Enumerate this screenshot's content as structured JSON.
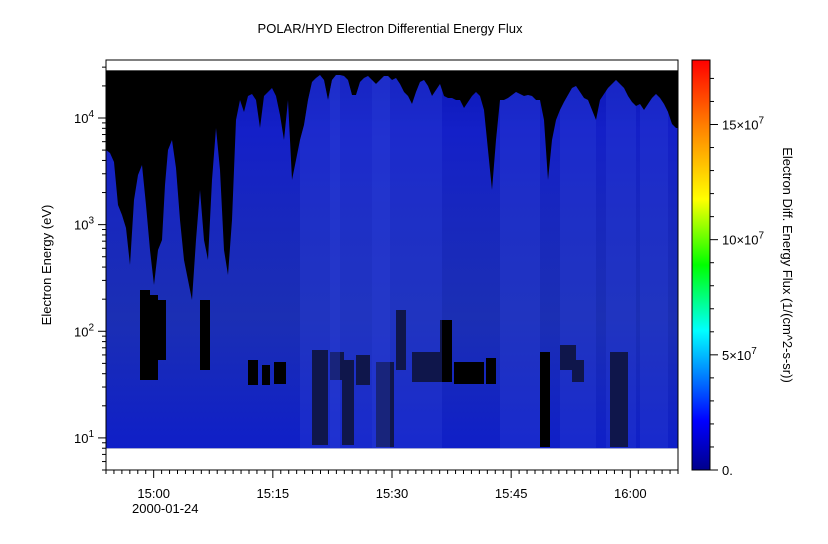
{
  "chart_data": {
    "type": "heatmap",
    "title": "POLAR/HYD  Electron Differential Energy Flux",
    "xlabel": "",
    "ylabel": "Electron Energy (eV)",
    "x_tick_labels": [
      "15:00",
      "15:15",
      "15:30",
      "15:45",
      "16:00"
    ],
    "x_tick_minutes": [
      0,
      15,
      30,
      45,
      60
    ],
    "x_date_label": "2000-01-24",
    "xlim_minutes": [
      -6,
      66
    ],
    "y_scale": "log",
    "ylim": [
      5,
      35000
    ],
    "y_tick_labels": [
      {
        "base": "10",
        "exp": "1",
        "value": 10
      },
      {
        "base": "10",
        "exp": "2",
        "value": 100
      },
      {
        "base": "10",
        "exp": "3",
        "value": 1000
      },
      {
        "base": "10",
        "exp": "4",
        "value": 10000
      }
    ],
    "data_energy_range_eV": [
      8,
      28000
    ],
    "colorbar": {
      "label": "Electron Diff. Energy Flux (1/(cm^2-s-sr))",
      "range": [
        0,
        178000000
      ],
      "ticks": [
        {
          "value": 0,
          "label": "0.",
          "exp": ""
        },
        {
          "value": 50000000,
          "label": "5×10",
          "exp": "7"
        },
        {
          "value": 100000000,
          "label": "10×10",
          "exp": "7"
        },
        {
          "value": 150000000,
          "label": "15×10",
          "exp": "7"
        }
      ],
      "colors": [
        "#00008b",
        "#0000ff",
        "#00ffff",
        "#00ff00",
        "#ffff00",
        "#ff7f00",
        "#ff0000"
      ]
    },
    "fill_value_color": "#000000",
    "grid": false,
    "background_color": "#ffffff"
  }
}
